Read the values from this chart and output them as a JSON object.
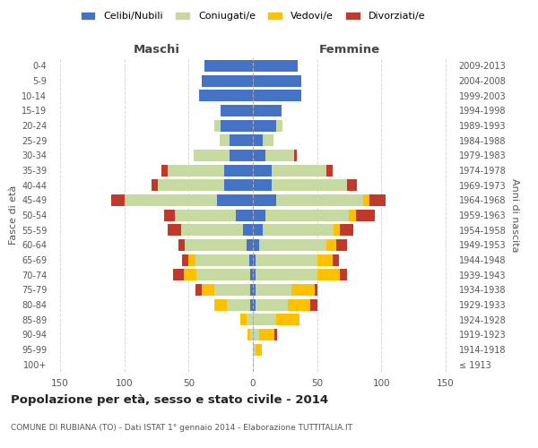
{
  "age_groups": [
    "100+",
    "95-99",
    "90-94",
    "85-89",
    "80-84",
    "75-79",
    "70-74",
    "65-69",
    "60-64",
    "55-59",
    "50-54",
    "45-49",
    "40-44",
    "35-39",
    "30-34",
    "25-29",
    "20-24",
    "15-19",
    "10-14",
    "5-9",
    "0-4"
  ],
  "birth_years": [
    "≤ 1913",
    "1914-1918",
    "1919-1923",
    "1924-1928",
    "1929-1933",
    "1934-1938",
    "1939-1943",
    "1944-1948",
    "1949-1953",
    "1954-1958",
    "1959-1963",
    "1964-1968",
    "1969-1973",
    "1974-1978",
    "1979-1983",
    "1984-1988",
    "1989-1993",
    "1994-1998",
    "1999-2003",
    "2004-2008",
    "2009-2013"
  ],
  "maschi": {
    "celibi": [
      0,
      0,
      0,
      0,
      2,
      2,
      2,
      3,
      5,
      8,
      13,
      28,
      22,
      22,
      18,
      18,
      25,
      25,
      42,
      40,
      38
    ],
    "coniugati": [
      0,
      0,
      2,
      5,
      18,
      28,
      42,
      42,
      48,
      48,
      48,
      72,
      52,
      44,
      28,
      8,
      5,
      0,
      0,
      0,
      0
    ],
    "vedovi": [
      0,
      0,
      2,
      5,
      10,
      10,
      10,
      5,
      0,
      0,
      0,
      0,
      0,
      0,
      0,
      0,
      0,
      0,
      0,
      0,
      0
    ],
    "divorziati": [
      0,
      0,
      0,
      0,
      0,
      5,
      8,
      5,
      5,
      10,
      8,
      10,
      5,
      5,
      0,
      0,
      0,
      0,
      0,
      0,
      0
    ]
  },
  "femmine": {
    "nubili": [
      0,
      0,
      0,
      0,
      2,
      2,
      2,
      2,
      5,
      8,
      10,
      18,
      15,
      15,
      10,
      8,
      18,
      22,
      38,
      38,
      35
    ],
    "coniugate": [
      0,
      2,
      5,
      18,
      25,
      28,
      48,
      48,
      52,
      55,
      65,
      68,
      58,
      42,
      22,
      8,
      5,
      0,
      0,
      0,
      0
    ],
    "vedove": [
      0,
      5,
      12,
      18,
      18,
      18,
      18,
      12,
      8,
      5,
      5,
      5,
      0,
      0,
      0,
      0,
      0,
      0,
      0,
      0,
      0
    ],
    "divorziate": [
      0,
      0,
      2,
      0,
      5,
      2,
      5,
      5,
      8,
      10,
      15,
      12,
      8,
      5,
      2,
      0,
      0,
      0,
      0,
      0,
      0
    ]
  },
  "colors": {
    "celibi_nubili": "#4472c4",
    "coniugati": "#c5d9a0",
    "vedovi": "#ffc000",
    "divorziati": "#c0392b"
  },
  "xlim": 155,
  "title": "Popolazione per età, sesso e stato civile - 2014",
  "subtitle": "COMUNE DI RUBIANA (TO) - Dati ISTAT 1° gennaio 2014 - Elaborazione TUTTITALIA.IT",
  "xlabel_left": "Maschi",
  "xlabel_right": "Femmine",
  "ylabel_left": "Fasce di età",
  "ylabel_right": "Anni di nascita",
  "legend_labels": [
    "Celibi/Nubili",
    "Coniugati/e",
    "Vedovi/e",
    "Divorziati/e"
  ],
  "bg_color": "#ffffff",
  "grid_color": "#cccccc"
}
